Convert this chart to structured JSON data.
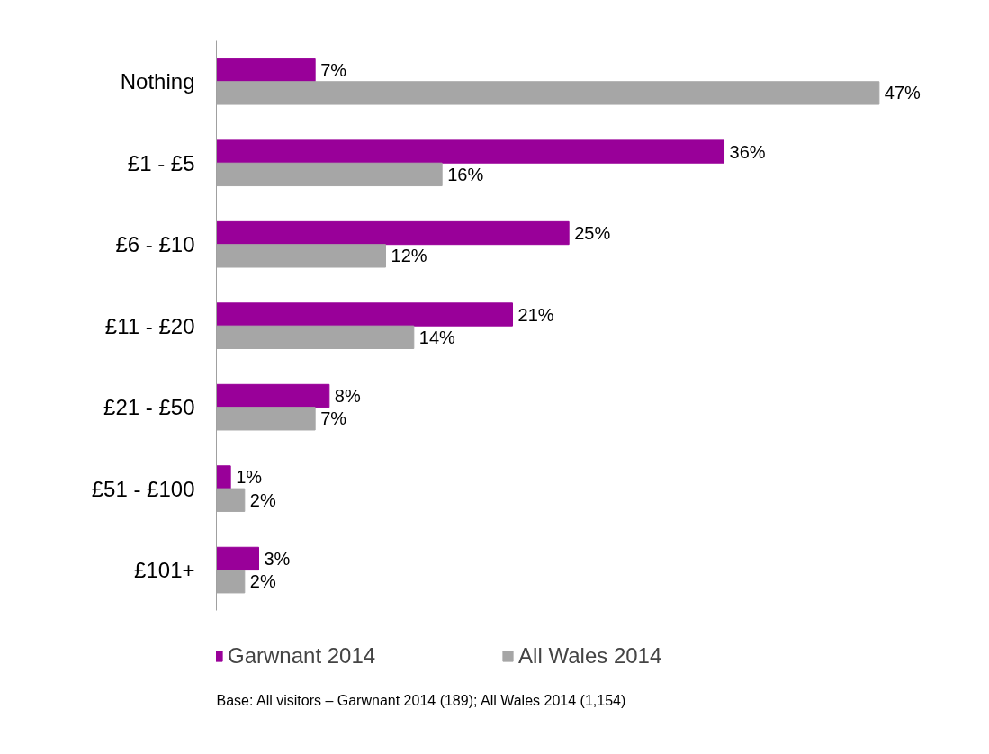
{
  "chart_data": {
    "type": "bar",
    "orientation": "horizontal",
    "categories": [
      "Nothing",
      "£1 - £5",
      "£6 - £10",
      "£11 - £20",
      "£21 - £50",
      "£51 - £100",
      "£101+"
    ],
    "series": [
      {
        "name": "Garwnant 2014",
        "color": "#990099",
        "values": [
          7,
          36,
          25,
          21,
          8,
          1,
          3
        ],
        "value_labels": [
          "7%",
          "36%",
          "25%",
          "21%",
          "8%",
          "1%",
          "3%"
        ]
      },
      {
        "name": "All Wales 2014",
        "color": "#a6a6a6",
        "values": [
          47,
          16,
          12,
          14,
          7,
          2,
          2
        ],
        "value_labels": [
          "47%",
          "16%",
          "12%",
          "14%",
          "7%",
          "2%",
          "2%"
        ]
      }
    ],
    "legend": "bottom",
    "grid": false,
    "tick_labels": "y",
    "annotations": [
      "Base: All visitors – Garwnant 2014 (189); All Wales 2014 (1,154)"
    ]
  }
}
